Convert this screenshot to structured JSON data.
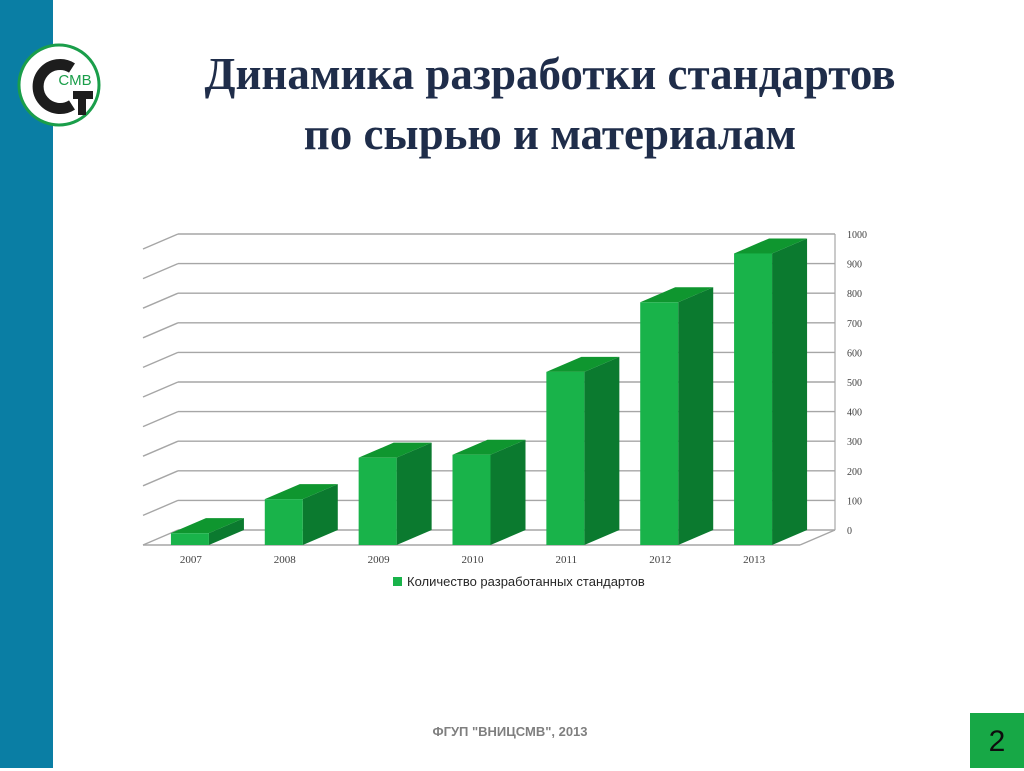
{
  "slide": {
    "title_line1": "Динамика разработки стандартов",
    "title_line2": "по сырью и материалам",
    "footer": "ФГУП \"ВНИЦСМВ\", 2013",
    "page_number": "2",
    "logo_text": "СМВ",
    "colors": {
      "sidebar": "#0a7ea4",
      "title": "#1f2d4a",
      "bar_front": "#19b34a",
      "bar_side": "#0b7a2f",
      "bar_top": "#0f962f",
      "page_badge": "#17a846",
      "logo_green": "#1a9e4a"
    }
  },
  "chart_data": {
    "type": "bar",
    "categories": [
      "2007",
      "2008",
      "2009",
      "2010",
      "2011",
      "2012",
      "2013"
    ],
    "series": [
      {
        "name": "Количество разработанных стандартов",
        "values": [
          40,
          155,
          295,
          305,
          585,
          820,
          985
        ]
      }
    ],
    "y_ticks": [
      "0",
      "100",
      "200",
      "300",
      "400",
      "500",
      "600",
      "700",
      "800",
      "900",
      "1000"
    ],
    "ylim": [
      0,
      1000
    ],
    "grid": true,
    "three_d": true,
    "y_axis_side": "right",
    "legend_position": "bottom"
  }
}
